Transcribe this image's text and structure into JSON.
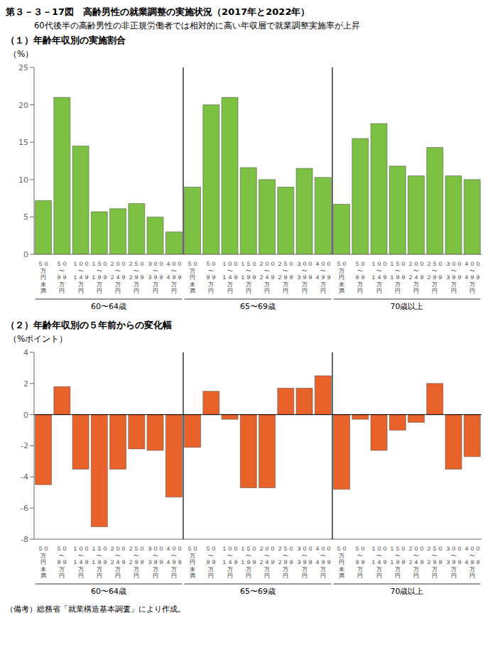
{
  "title": "第３－３－17図　高齢男性の就業調整の実施状況（2017年と2022年）",
  "subtitle": "60代後半の高齢男性の非正規労働者では相対的に高い年収層で就業調整実施率が上昇",
  "footnote": "（備考）総務省「就業構造基本調査」により作成。",
  "chart_data": [
    {
      "type": "bar",
      "title": "（１）年齢年収別の実施割合",
      "y_label": "（%）",
      "categories": [
        "５０\n万\n円\n未\n満",
        "５０\n〜\n９９\n万\n円",
        "１００\n〜\n１４９\n万\n円",
        "１５０\n〜\n１９９\n万\n円",
        "２００\n〜\n２４９\n万\n円",
        "２５０\n〜\n２９９\n万\n円",
        "３００\n〜\n３９９\n万\n円",
        "４００\n〜\n４９９\n万\n円"
      ],
      "series": [
        {
          "name": "60〜64歳",
          "values": [
            7.2,
            21.0,
            14.5,
            5.7,
            6.1,
            6.8,
            5.0,
            3.0
          ]
        },
        {
          "name": "65〜69歳",
          "values": [
            9.0,
            20.0,
            21.0,
            11.6,
            10.0,
            9.0,
            11.5,
            10.3
          ]
        },
        {
          "name": "70歳以上",
          "values": [
            6.7,
            15.5,
            17.5,
            11.8,
            10.5,
            14.3,
            10.5,
            10.0
          ]
        }
      ],
      "color": "#7dc142",
      "ylim": [
        0,
        25
      ],
      "yticks": [
        0,
        5,
        10,
        15,
        20,
        25
      ],
      "grid": false
    },
    {
      "type": "bar",
      "title": "（２）年齢年収別の５年前からの変化幅",
      "y_label": "（%ポイント）",
      "categories": [
        "５０\n万\n円\n未\n満",
        "５０\n〜\n９９\n万\n円",
        "１００\n〜\n１４９\n万\n円",
        "１５０\n〜\n１９９\n万\n円",
        "２００\n〜\n２４９\n万\n円",
        "２５０\n〜\n２９９\n万\n円",
        "３００\n〜\n３９９\n万\n円",
        "４００\n〜\n４９９\n万\n円"
      ],
      "series": [
        {
          "name": "60〜64歳",
          "values": [
            -4.5,
            1.8,
            -3.5,
            -7.2,
            -3.5,
            -2.2,
            -2.3,
            -5.3
          ]
        },
        {
          "name": "65〜69歳",
          "values": [
            -2.1,
            1.5,
            -0.3,
            -4.7,
            -4.7,
            1.7,
            1.7,
            2.5
          ]
        },
        {
          "name": "70歳以上",
          "values": [
            -4.8,
            -0.3,
            -2.3,
            -1.0,
            -0.5,
            2.0,
            -3.5,
            -2.7
          ]
        }
      ],
      "color": "#e8622a",
      "ylim": [
        -8,
        4
      ],
      "yticks": [
        -8,
        -6,
        -4,
        -2,
        0,
        2,
        4
      ],
      "grid": false
    }
  ]
}
